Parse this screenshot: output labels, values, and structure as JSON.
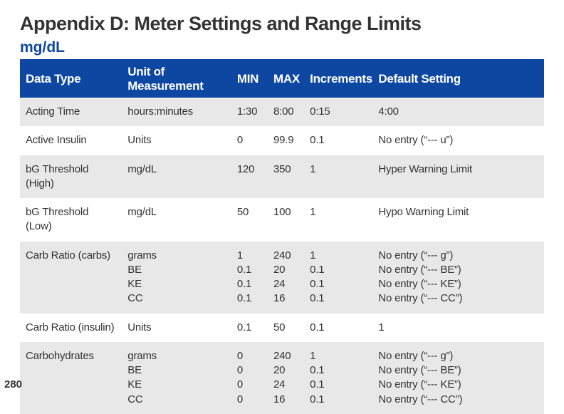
{
  "title": "Appendix D: Meter Settings and Range Limits",
  "subtitle": "mg/dL",
  "page_number": "280",
  "columns": [
    "Data Type",
    "Unit of Measurement",
    "MIN",
    "MAX",
    "Increments",
    "Default Setting"
  ],
  "rows": [
    {
      "shade": true,
      "data_type": "Acting Time",
      "unit": "hours:minutes",
      "min": "1:30",
      "max": "8:00",
      "inc": "0:15",
      "def": "4:00"
    },
    {
      "shade": false,
      "data_type": "Active Insulin",
      "unit": "Units",
      "min": "0",
      "max": "99.9",
      "inc": "0.1",
      "def": "No entry (“--- u”)"
    },
    {
      "shade": true,
      "data_type": "bG Threshold (High)",
      "unit": "mg/dL",
      "min": "120",
      "max": "350",
      "inc": "1",
      "def": "Hyper Warning Limit"
    },
    {
      "shade": false,
      "data_type": "bG Threshold (Low)",
      "unit": "mg/dL",
      "min": "50",
      "max": "100",
      "inc": "1",
      "def": "Hypo Warning Limit"
    },
    {
      "shade": true,
      "data_type": "Carb Ratio (carbs)",
      "unit": "grams\nBE\nKE\nCC",
      "min": "1\n0.1\n0.1\n0.1",
      "max": "240\n20\n24\n16",
      "inc": "1\n0.1\n0.1\n0.1",
      "def": "No entry (“--- g”)\nNo entry (“--- BE”)\nNo entry (“--- KE”)\nNo entry (“--- CC”)"
    },
    {
      "shade": false,
      "data_type": "Carb Ratio (insulin)",
      "unit": "Units",
      "min": "0.1",
      "max": "50",
      "inc": "0.1",
      "def": "1"
    },
    {
      "shade": true,
      "data_type": "Carbohydrates",
      "unit": "grams\nBE\nKE\nCC",
      "min": "0\n0\n0\n0",
      "max": "240\n20\n24\n16",
      "inc": "1\n0.1\n0.1\n0.1",
      "def": "No entry (“--- g”)\nNo entry (“--- BE”)\nNo entry (“--- KE”)\nNo entry (“--- CC”)"
    }
  ]
}
